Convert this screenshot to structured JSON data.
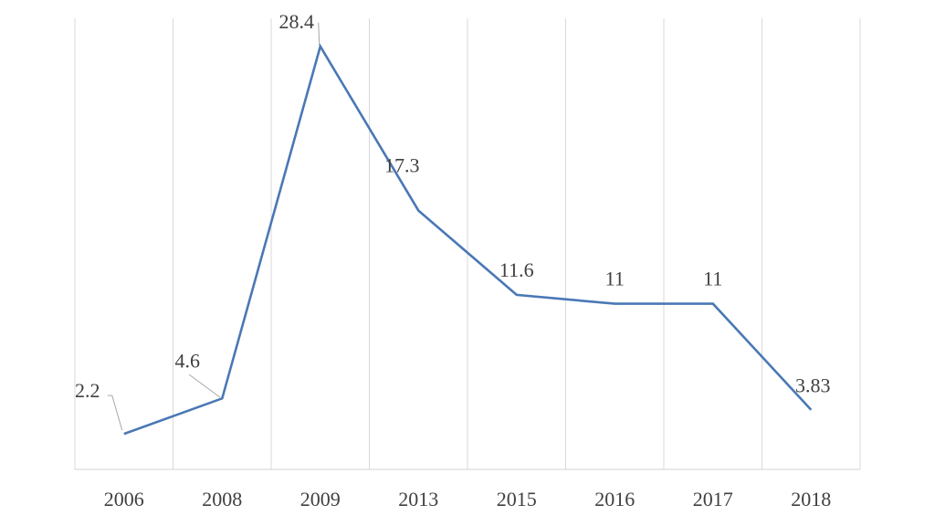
{
  "chart_data": {
    "type": "line",
    "categories": [
      "2006",
      "2008",
      "2009",
      "2013",
      "2015",
      "2016",
      "2017",
      "2018"
    ],
    "series": [
      {
        "values": [
          2.2,
          4.6,
          28.4,
          17.3,
          11.6,
          11,
          11,
          3.83
        ],
        "labels": [
          "2.2",
          "4.6",
          "28.4",
          "17.3",
          "11.6",
          "11",
          "11",
          "3.83"
        ],
        "color": "#4a78b5"
      }
    ],
    "ylim": [
      -0.2,
      30.3
    ],
    "grid": "vertical",
    "legend": "none",
    "title": "",
    "xlabel": "",
    "ylabel": ""
  },
  "colors": {
    "line": "#4a78b5",
    "grid": "#d9d9d9",
    "leader": "#a6a6a6",
    "text": "#404040"
  }
}
